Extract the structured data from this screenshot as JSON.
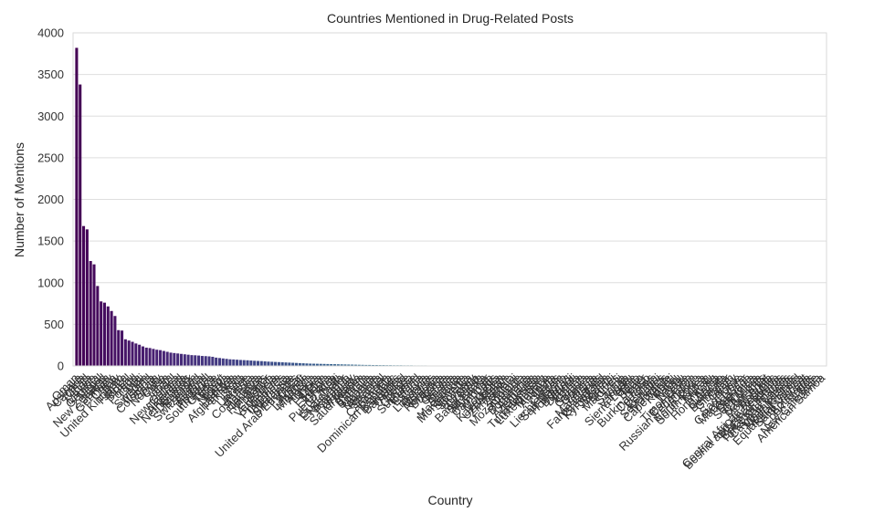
{
  "chart_data": {
    "type": "bar",
    "title": "Countries Mentioned in Drug-Related Posts",
    "xlabel": "Country",
    "ylabel": "Number of Mentions",
    "ylim": [
      0,
      4000
    ],
    "yticks": [
      0,
      500,
      1000,
      1500,
      2000,
      2500,
      3000,
      3500,
      4000
    ],
    "grid": true,
    "palette": "viridis",
    "categories": [
      "Oman",
      "Australia",
      "Canada",
      "Chad",
      "India",
      "Mexico",
      "Georgia",
      "Nepal",
      "New Zealand",
      "Jordan",
      "Germany",
      "China",
      "Italy",
      "United Kingdom",
      "France",
      "Brazil",
      "Peru",
      "Poland",
      "Chile",
      "Mali",
      "Sweden",
      "Ireland",
      "Colombia",
      "Spain",
      "Norway",
      "Cuba",
      "Iran",
      "Japan",
      "Israel",
      "New Guinea",
      "Thailand",
      "Argentina",
      "Netherlands",
      "Denmark",
      "Belgium",
      "Switzerland",
      "Austria",
      "Finland",
      "Portugal",
      "South Africa",
      "Greece",
      "Turkey",
      "Egypt",
      "Nigeria",
      "Kenya",
      "Afghanistan",
      "Pakistan",
      "Iraq",
      "Syria",
      "Ukraine",
      "Russia",
      "Costa Rica",
      "Panama",
      "Jamaica",
      "Honduras",
      "Ecuador",
      "Bolivia",
      "Venezuela",
      "Vietnam",
      "Philippines",
      "Indonesia",
      "Malaysia",
      "Singapore",
      "United Arab Emirates",
      "Qatar",
      "Kuwait",
      "Lebanon",
      "Morocco",
      "Algeria",
      "Tunisia",
      "Libya",
      "Sudan",
      "Ethiopia",
      "Ghana",
      "Puerto Rico",
      "Haiti",
      "Guatemala",
      "El Salvador",
      "Nicaragua",
      "Paraguay",
      "Uruguay",
      "Saudi Arabia",
      "Yemen",
      "Bahrain",
      "Somalia",
      "Uganda",
      "Tanzania",
      "Rwanda",
      "Senegal",
      "Cameroon",
      "Angola",
      "Dominican Republic",
      "Bahamas",
      "Barbados",
      "Trinidad",
      "Belize",
      "Guyana",
      "Suriname",
      "Iceland",
      "Estonia",
      "Latvia",
      "Lithuania",
      "Belarus",
      "Moldova",
      "Romania",
      "Bulgaria",
      "Serbia",
      "Croatia",
      "Bosnia",
      "Albania",
      "Macedonia",
      "Montenegro",
      "Slovenia",
      "Slovakia",
      "Hungary",
      "Czechia",
      "Bangladesh",
      "Sri Lanka",
      "Myanmar",
      "Cambodia",
      "Laos",
      "Mongolia",
      "Kazakhstan",
      "Uzbekistan",
      "Zimbabwe",
      "Zambia",
      "Malawi",
      "Mozambique",
      "Namibia",
      "Botswana",
      "Armenia",
      "Azerbaijan",
      "Tajikistan",
      "Turkmenistan",
      "Luxembourg",
      "Monaco",
      "Andorra",
      "Malta",
      "Cyprus",
      "Liechtenstein",
      "San Marino",
      "Honduras",
      "Burundi",
      "Djibouti",
      "Eritrea",
      "Gabon",
      "Gambia",
      "Guinea",
      "Liberia",
      "Mauritania",
      "Faroe Islands",
      "Greenland",
      "Kyrgyzstan",
      "Bhutan",
      "Brunei",
      "Maldives",
      "Fiji",
      "Samoa",
      "Tonga",
      "Vanuatu",
      "Sierra Leone",
      "Togo",
      "Benin",
      "Niger",
      "Burkina Faso",
      "Comoros",
      "Lesotho",
      "Eswatini",
      "Seychelles",
      "Mauritius",
      "Cape Verde",
      "Kiribati",
      "Palau",
      "Nauru",
      "Tuvalu",
      "Timor-Leste",
      "Cameroon",
      "Russian Federation",
      "Congo",
      "North Korea",
      "South Korea",
      "Taiwan",
      "Macau",
      "Hong Kong",
      "Aruba",
      "Curacao",
      "Bermuda",
      "Gibraltar",
      "Guam",
      "Jersey",
      "Sao Tome",
      "Cote d'Ivoire",
      "Madagascar",
      "Grenada",
      "Dominica",
      "Saint Lucia",
      "Antigua",
      "Saint Kitts",
      "Montserrat",
      "Anguilla",
      "Central African Republic",
      "Bosnia and Herzegovina",
      "Marshall Islands",
      "Solomon Islands",
      "Turks and Caicos",
      "Cayman Islands",
      "Virgin Islands",
      "Norfolk Island",
      "Equatorial Guinea",
      "Saint Vincent",
      "Botswana",
      "Cook Islands",
      "Niue",
      "New Caledonia",
      "American Samoa"
    ],
    "values": [
      3820,
      3380,
      1680,
      1640,
      1260,
      1220,
      960,
      775,
      760,
      715,
      660,
      600,
      430,
      425,
      320,
      305,
      290,
      270,
      255,
      235,
      220,
      215,
      205,
      195,
      190,
      180,
      170,
      160,
      155,
      150,
      145,
      140,
      135,
      130,
      128,
      125,
      120,
      118,
      115,
      110,
      100,
      95,
      90,
      85,
      80,
      78,
      75,
      72,
      70,
      68,
      65,
      62,
      60,
      58,
      55,
      52,
      50,
      48,
      46,
      44,
      42,
      40,
      38,
      36,
      34,
      32,
      30,
      28,
      27,
      26,
      25,
      24,
      23,
      22,
      21,
      20,
      19,
      18,
      17,
      16,
      15,
      14,
      13,
      12,
      12,
      11,
      11,
      10,
      10,
      9,
      9,
      8,
      8,
      8,
      7,
      7,
      7,
      6,
      6,
      6,
      6,
      5,
      5,
      5,
      5,
      5,
      4,
      4,
      4,
      4,
      4,
      4,
      3,
      3,
      3,
      3,
      3,
      3,
      3,
      3,
      3,
      3,
      2,
      2,
      2,
      2,
      2,
      2,
      2,
      2,
      2,
      2,
      2,
      2,
      2,
      2,
      2,
      2,
      2,
      2,
      2,
      2,
      1,
      1,
      1,
      1,
      1,
      1,
      1,
      1,
      1,
      1,
      1,
      1,
      1,
      1,
      1,
      1,
      1,
      1,
      1,
      1,
      1,
      1,
      1,
      1,
      1,
      1,
      1,
      1,
      1,
      1,
      1,
      1,
      1,
      1,
      1,
      1,
      1,
      1,
      1,
      1,
      1,
      1,
      1,
      1,
      1,
      1,
      1,
      1,
      1,
      1,
      1,
      1,
      1,
      1,
      1,
      1,
      1,
      1,
      1,
      1,
      1,
      1,
      1,
      1,
      1,
      1,
      1,
      1,
      1,
      1,
      1,
      1,
      1
    ]
  }
}
